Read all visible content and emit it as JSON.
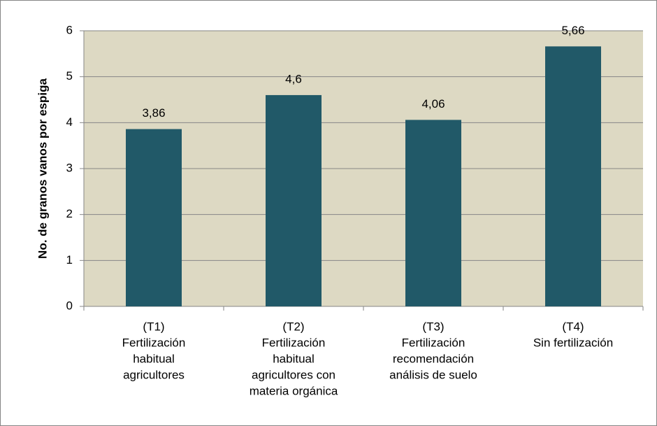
{
  "chart_data": {
    "type": "bar",
    "y_label": "No. de granos vanos por espiga",
    "categories": [
      [
        "(T1)",
        "Fertilización",
        "habitual",
        "agricultores"
      ],
      [
        "(T2)",
        "Fertilización",
        "habitual",
        "agricultores con",
        "materia orgánica"
      ],
      [
        "(T3)",
        "Fertilización",
        "recomendación",
        "análisis de suelo"
      ],
      [
        "(T4)",
        "Sin fertilización"
      ]
    ],
    "values": [
      3.86,
      4.6,
      4.06,
      5.66
    ],
    "value_labels": [
      "3,86",
      "4,6",
      "4,06",
      "5,66"
    ],
    "color": "#215968",
    "plot_background": "#ddd9c3",
    "ylim": [
      0,
      6
    ],
    "yticks": [
      0,
      1,
      2,
      3,
      4,
      5,
      6
    ],
    "grid": true
  }
}
